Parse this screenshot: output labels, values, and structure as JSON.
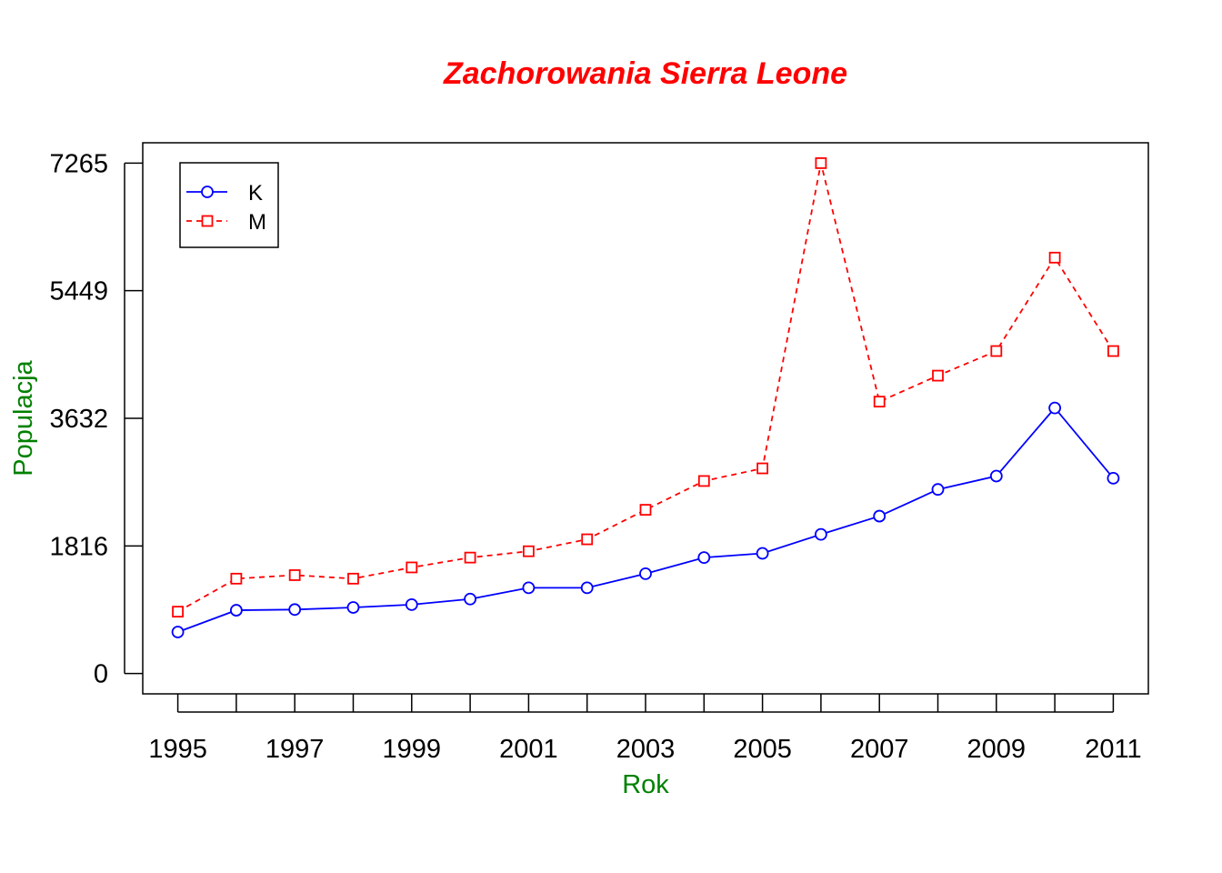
{
  "chart_data": {
    "type": "line",
    "title": "Zachorowania Sierra Leone",
    "xlabel": "Rok",
    "ylabel": "Populacja",
    "x": [
      1995,
      1996,
      1997,
      1998,
      1999,
      2000,
      2001,
      2002,
      2003,
      2004,
      2005,
      2006,
      2007,
      2008,
      2009,
      2010,
      2011
    ],
    "xticks": [
      1995,
      1996,
      1997,
      1998,
      1999,
      2000,
      2001,
      2002,
      2003,
      2004,
      2005,
      2006,
      2007,
      2008,
      2009,
      2010,
      2011
    ],
    "xtick_labels": [
      "1995",
      "",
      "1997",
      "",
      "1999",
      "",
      "2001",
      "",
      "2003",
      "",
      "2005",
      "",
      "2007",
      "",
      "2009",
      "",
      "2011"
    ],
    "yticks": [
      0,
      1816,
      3632,
      5449,
      7265
    ],
    "ytick_labels": [
      "0",
      "1816",
      "3632",
      "5449",
      "7265"
    ],
    "xlim": [
      1994.4,
      2011.6
    ],
    "ylim": [
      -290,
      7555
    ],
    "grid": false,
    "legend_position": "top-left",
    "series": [
      {
        "name": "K",
        "color": "#0000ff",
        "line_style": "solid",
        "marker": "circle",
        "values": [
          590,
          900,
          910,
          940,
          980,
          1060,
          1220,
          1220,
          1420,
          1650,
          1710,
          1980,
          2240,
          2620,
          2810,
          3780,
          2780
        ]
      },
      {
        "name": "M",
        "color": "#ff0000",
        "line_style": "dashed",
        "marker": "square",
        "values": [
          880,
          1350,
          1400,
          1350,
          1510,
          1650,
          1740,
          1910,
          2330,
          2740,
          2920,
          7265,
          3870,
          4240,
          4590,
          5920,
          4590
        ]
      }
    ]
  }
}
